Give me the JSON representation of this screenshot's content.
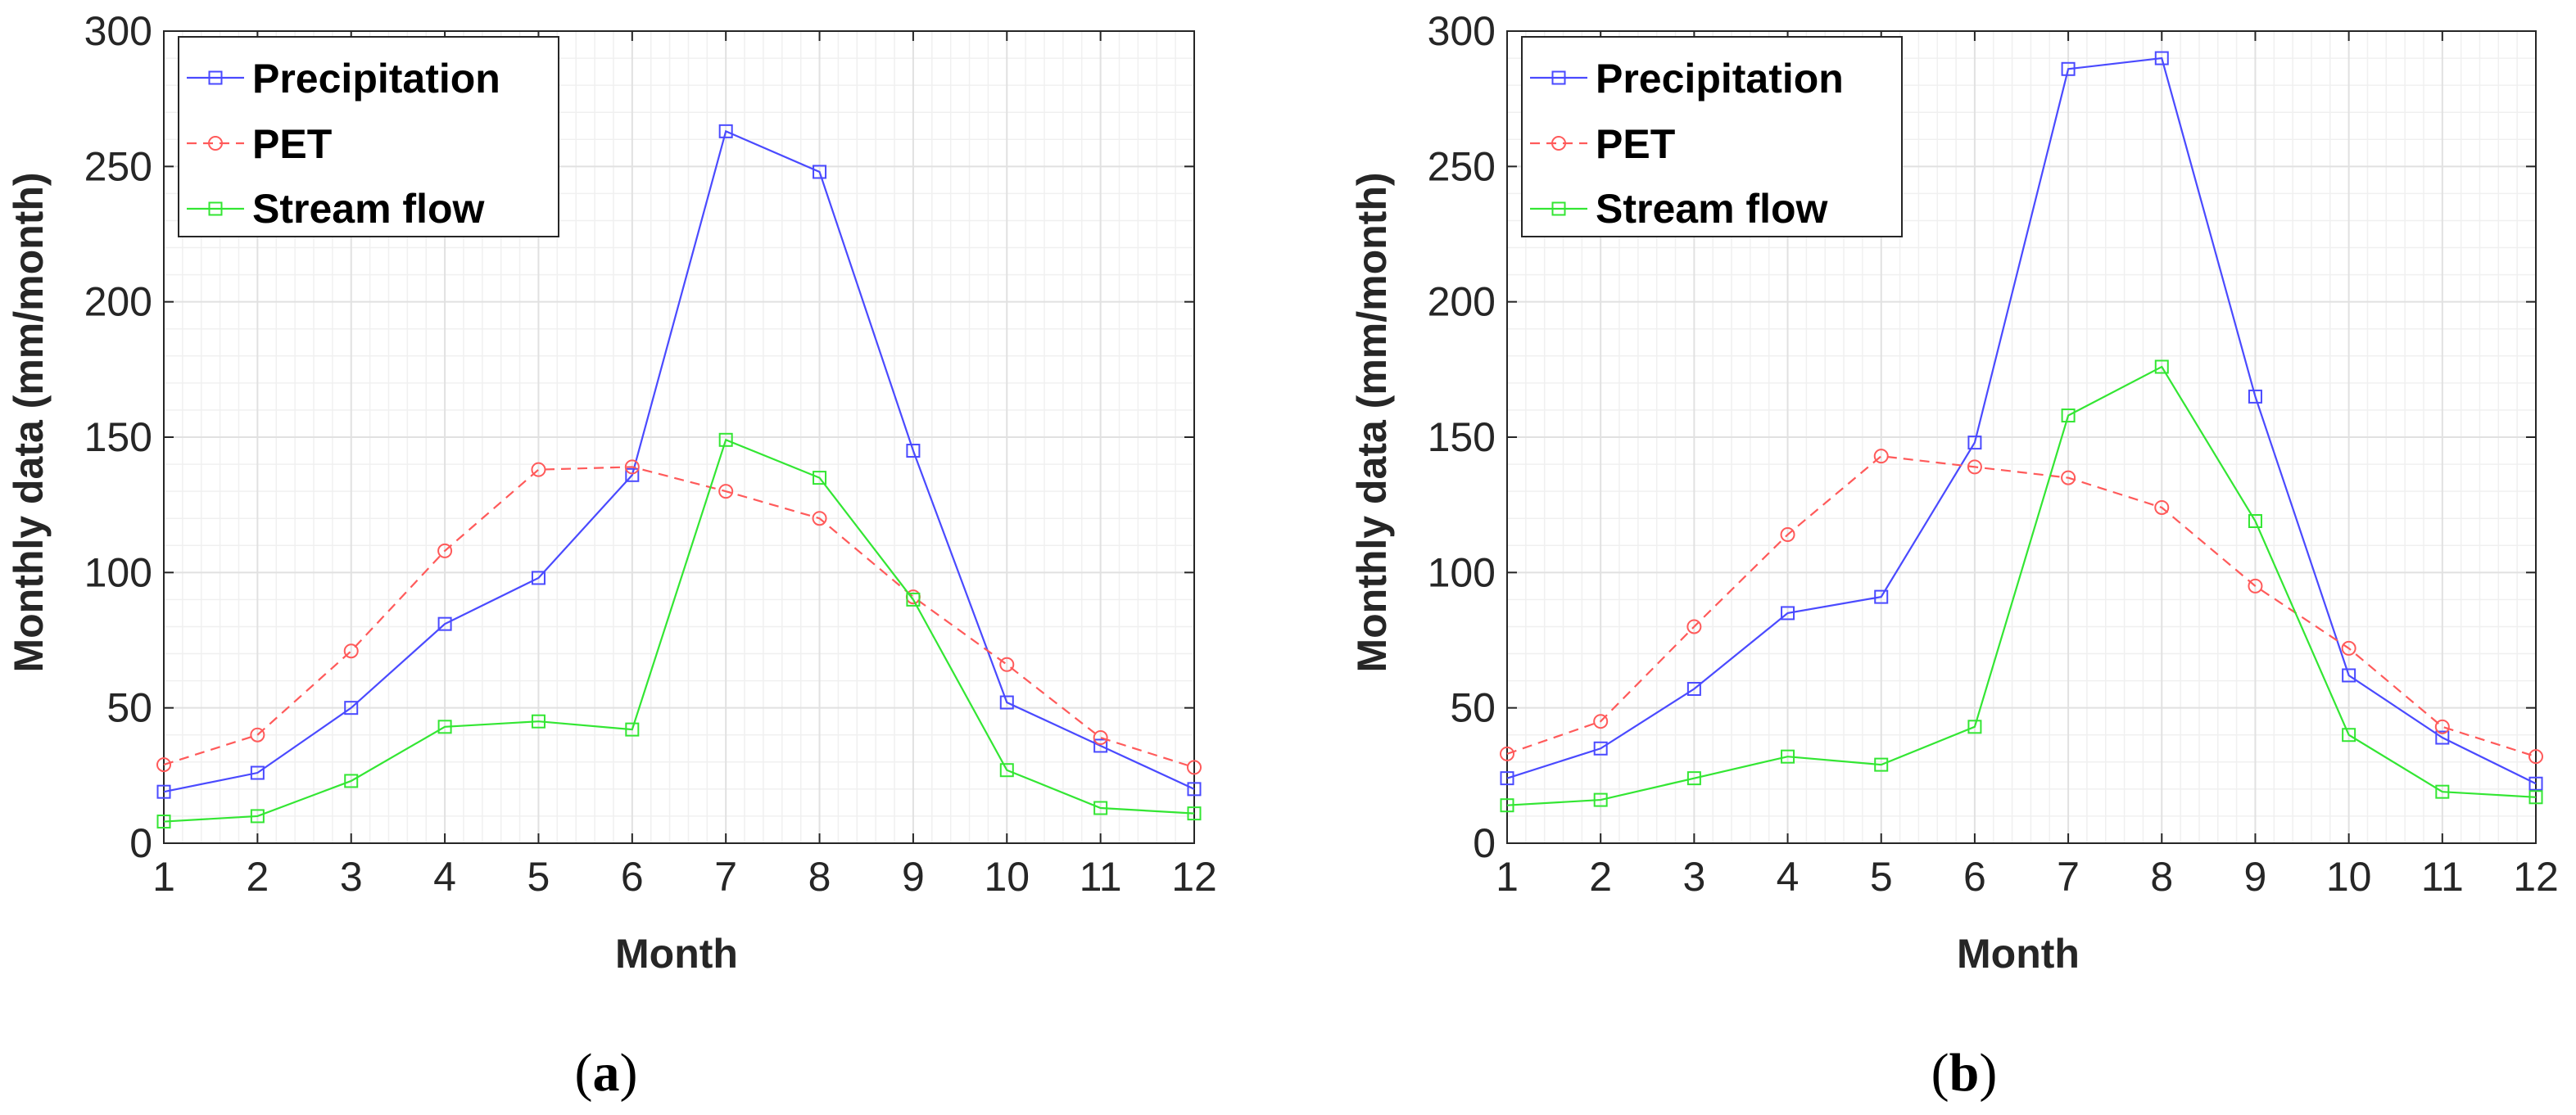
{
  "figure": {
    "panels": [
      {
        "caption_open": "(",
        "caption_letter": "a",
        "caption_close": ")"
      },
      {
        "caption_open": "(",
        "caption_letter": "b",
        "caption_close": ")"
      }
    ]
  },
  "chart_data": [
    {
      "type": "line",
      "title": "",
      "xlabel": "Month",
      "ylabel": "Monthly data (mm/month)",
      "x": [
        1,
        2,
        3,
        4,
        5,
        6,
        7,
        8,
        9,
        10,
        11,
        12
      ],
      "xlim": [
        1,
        12
      ],
      "ylim": [
        0,
        300
      ],
      "yticks": [
        0,
        50,
        100,
        150,
        200,
        250,
        300
      ],
      "grid": true,
      "legend_position": "top-left",
      "series": [
        {
          "name": "Precipitation",
          "color": "#4a4aff",
          "marker": "square",
          "dash": "solid",
          "values": [
            19,
            26,
            50,
            81,
            98,
            136,
            263,
            248,
            145,
            52,
            36,
            20
          ]
        },
        {
          "name": "PET",
          "color": "#ff5a5a",
          "marker": "circle",
          "dash": "dashed",
          "values": [
            29,
            40,
            71,
            108,
            138,
            139,
            130,
            120,
            91,
            66,
            39,
            28
          ]
        },
        {
          "name": "Stream flow",
          "color": "#33e633",
          "marker": "square",
          "dash": "solid",
          "values": [
            8,
            10,
            23,
            43,
            45,
            42,
            149,
            135,
            90,
            27,
            13,
            11
          ]
        }
      ]
    },
    {
      "type": "line",
      "title": "",
      "xlabel": "Month",
      "ylabel": "Monthly data (mm/month)",
      "x": [
        1,
        2,
        3,
        4,
        5,
        6,
        7,
        8,
        9,
        10,
        11,
        12
      ],
      "xlim": [
        1,
        12
      ],
      "ylim": [
        0,
        300
      ],
      "yticks": [
        0,
        50,
        100,
        150,
        200,
        250,
        300
      ],
      "grid": true,
      "legend_position": "top-left",
      "series": [
        {
          "name": "Precipitation",
          "color": "#4a4aff",
          "marker": "square",
          "dash": "solid",
          "values": [
            24,
            35,
            57,
            85,
            91,
            148,
            286,
            290,
            165,
            62,
            39,
            22
          ]
        },
        {
          "name": "PET",
          "color": "#ff5a5a",
          "marker": "circle",
          "dash": "dashed",
          "values": [
            33,
            45,
            80,
            114,
            143,
            139,
            135,
            124,
            95,
            72,
            43,
            32
          ]
        },
        {
          "name": "Stream flow",
          "color": "#33e633",
          "marker": "square",
          "dash": "solid",
          "values": [
            14,
            16,
            24,
            32,
            29,
            43,
            158,
            176,
            119,
            40,
            19,
            17
          ]
        }
      ]
    }
  ]
}
